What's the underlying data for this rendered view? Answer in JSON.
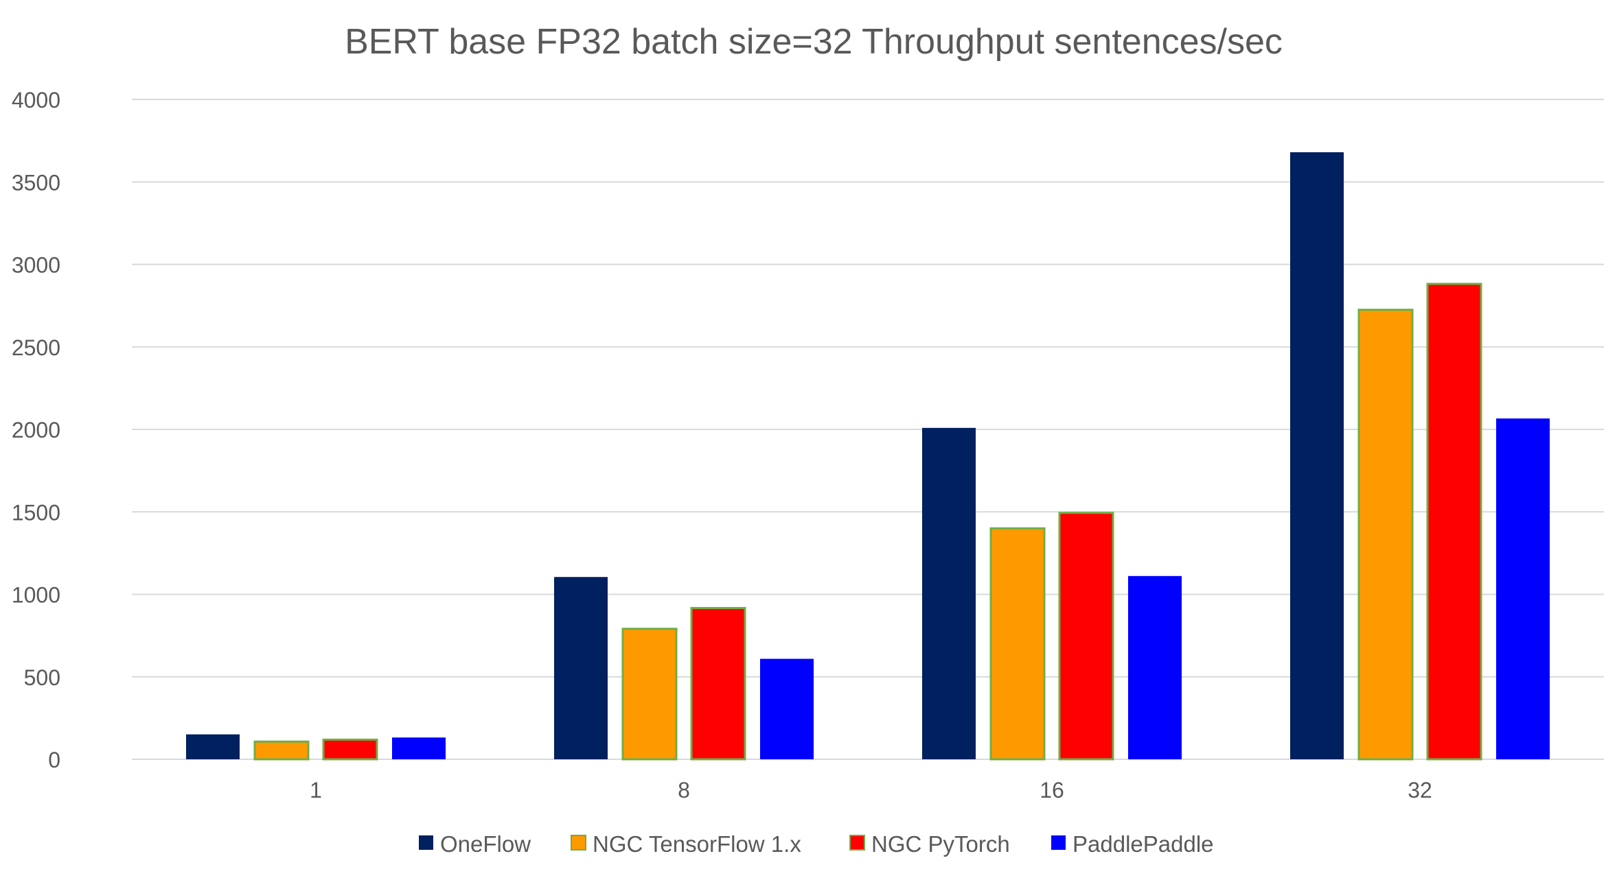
{
  "chart_data": {
    "type": "bar",
    "title": "BERT base FP32 batch size=32 Throughput sentences/sec",
    "xlabel": "",
    "ylabel": "",
    "categories": [
      "1",
      "8",
      "16",
      "32"
    ],
    "ylim": [
      0,
      4000
    ],
    "yticks": [
      "0",
      "500",
      "1000",
      "1500",
      "2000",
      "2500",
      "3000",
      "3500",
      "4000"
    ],
    "grid": true,
    "legend_position": "bottom",
    "series": [
      {
        "name": "OneFlow",
        "color": "#002060",
        "border": "",
        "values": [
          151,
          1105,
          2009,
          3680
        ]
      },
      {
        "name": "NGC TensorFlow 1.x",
        "color": "#FF9900",
        "border": "#70AD47",
        "values": [
          107,
          791,
          1400,
          2725
        ]
      },
      {
        "name": "NGC PyTorch",
        "color": "#FF0000",
        "border": "#70AD47",
        "values": [
          119,
          917,
          1494,
          2882
        ]
      },
      {
        "name": "PaddlePaddle",
        "color": "#0000FF",
        "border": "",
        "values": [
          132,
          609,
          1111,
          2066
        ]
      }
    ]
  }
}
